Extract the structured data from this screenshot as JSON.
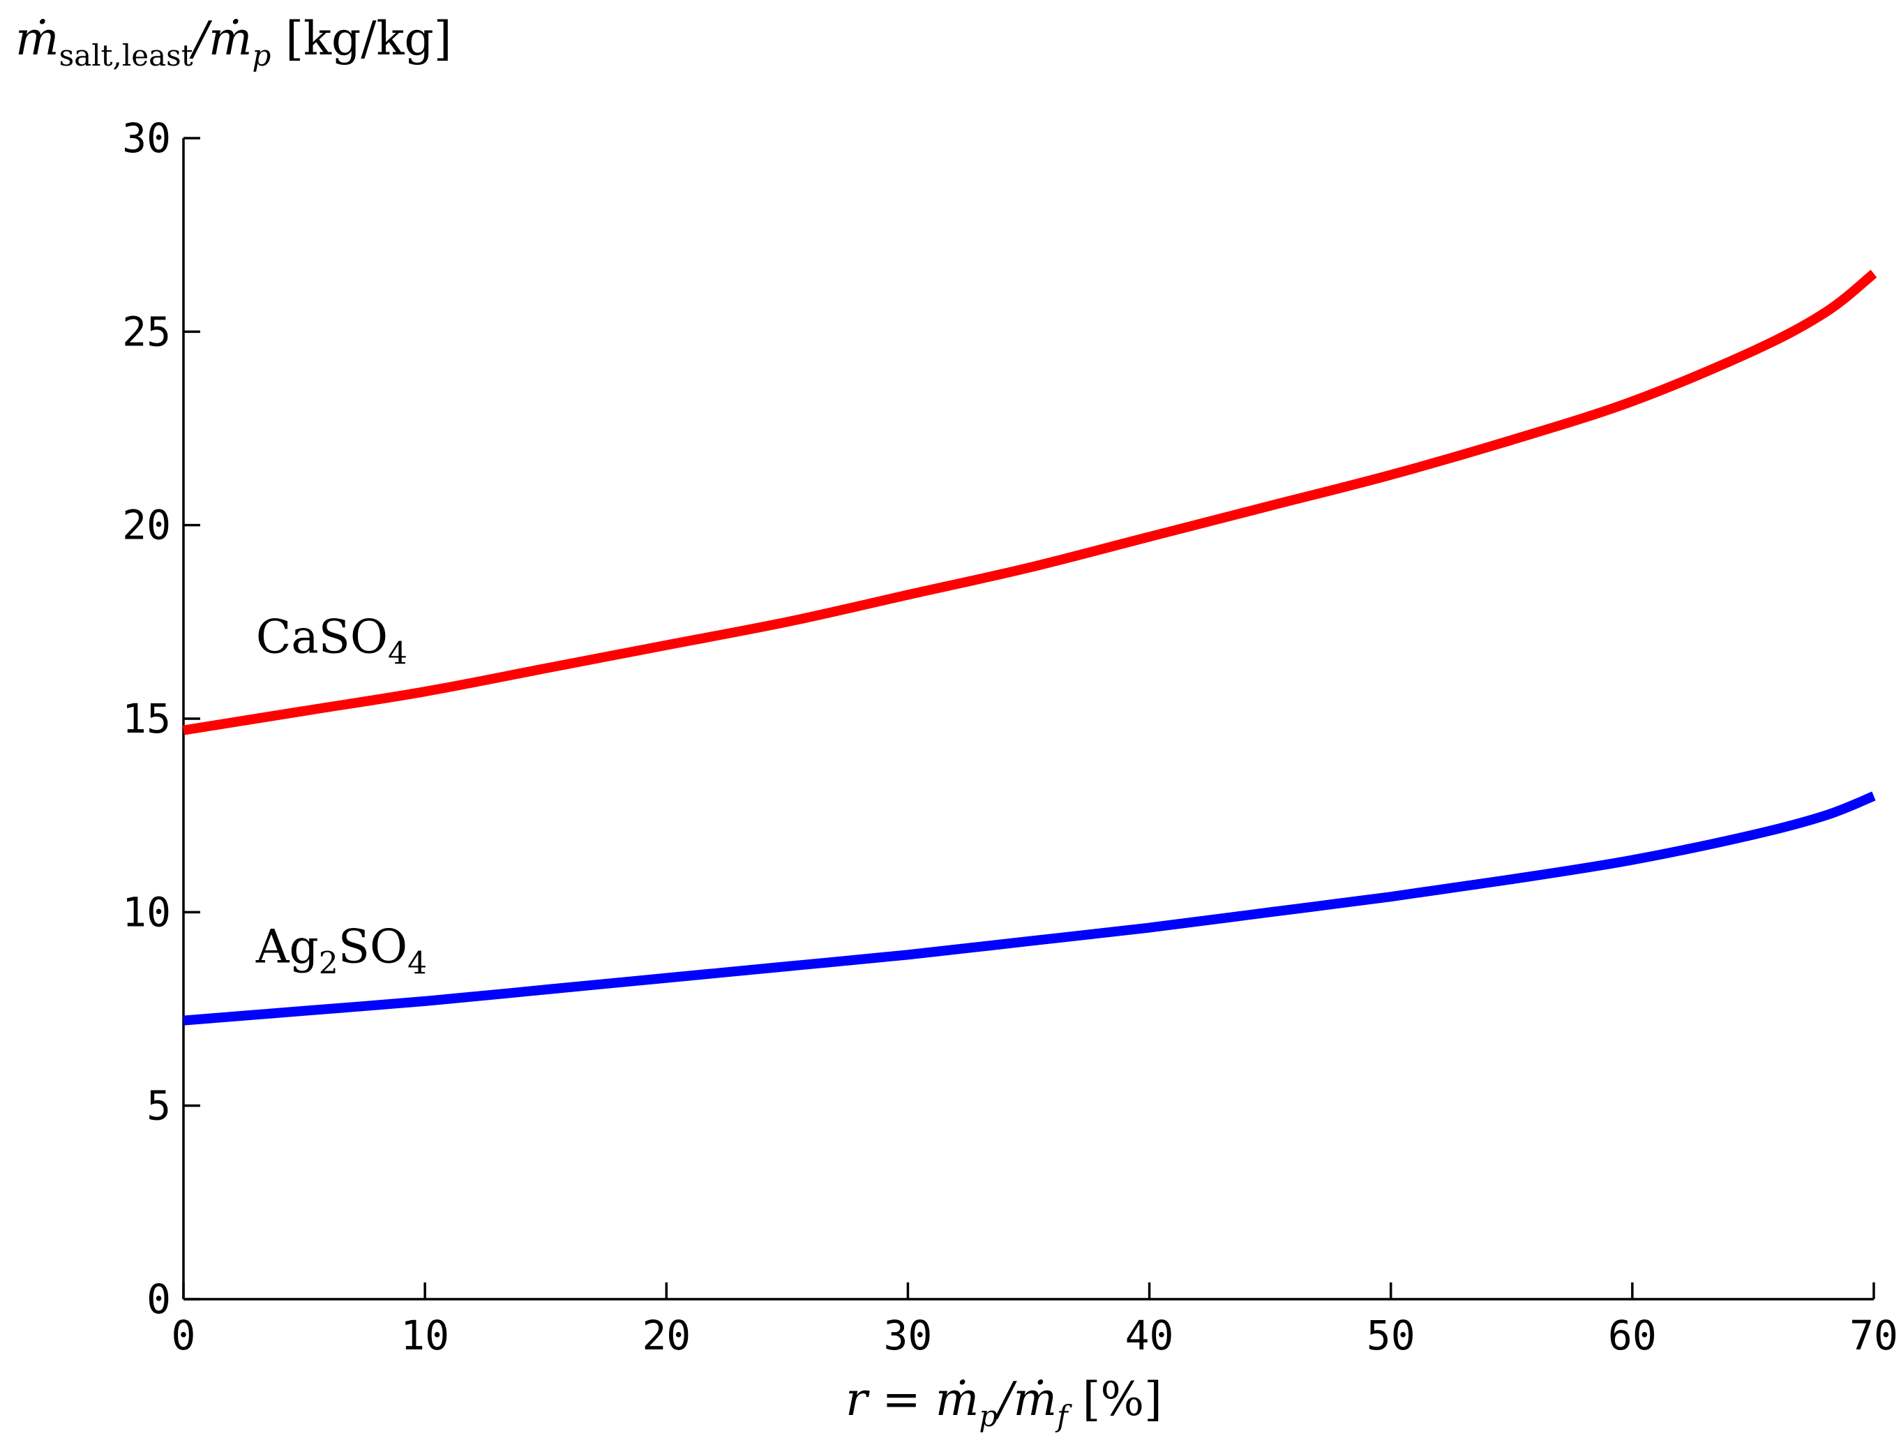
{
  "chart_data": {
    "type": "line",
    "title": "",
    "ylabel": {
      "prefix": "ṁ",
      "subscript": "salt,least",
      "mid": "/ṁ",
      "subscript2": "p",
      "unit": " [kg/kg]"
    },
    "xlabel": {
      "prefix": "r = ṁ",
      "subscript": "p",
      "mid": "/ṁ",
      "subscript2": "f",
      "unit": " [%]"
    },
    "xlim": [
      0,
      70
    ],
    "ylim": [
      0,
      30
    ],
    "x_ticks": [
      0,
      10,
      20,
      30,
      40,
      50,
      60,
      70
    ],
    "y_ticks": [
      0,
      5,
      10,
      15,
      20,
      25,
      30
    ],
    "x_tick_labels": [
      "0",
      "10",
      "20",
      "30",
      "40",
      "50",
      "60",
      "70"
    ],
    "y_tick_labels": [
      "0",
      "5",
      "10",
      "15",
      "20",
      "25",
      "30"
    ],
    "grid": false,
    "legend": "none",
    "series": [
      {
        "label": {
          "main": "CaSO",
          "subscript": "4",
          "rest": ""
        },
        "label_x": 3,
        "label_y": 16.7,
        "color": "#ff0000",
        "x": [
          0,
          5,
          10,
          15,
          20,
          25,
          30,
          35,
          40,
          45,
          50,
          55,
          60,
          65,
          68,
          70
        ],
        "y": [
          14.7,
          15.2,
          15.7,
          16.3,
          16.9,
          17.5,
          18.2,
          18.9,
          19.7,
          20.5,
          21.3,
          22.2,
          23.2,
          24.5,
          25.5,
          26.5
        ]
      },
      {
        "label": {
          "main": "Ag",
          "subscript": "2",
          "rest": "SO",
          "subscript2": "4"
        },
        "label_x": 3,
        "label_y": 8.7,
        "color": "#0000ff",
        "x": [
          0,
          5,
          10,
          15,
          20,
          25,
          30,
          35,
          40,
          45,
          50,
          55,
          60,
          65,
          68,
          70
        ],
        "y": [
          7.2,
          7.45,
          7.7,
          8.0,
          8.3,
          8.6,
          8.9,
          9.25,
          9.6,
          10.0,
          10.4,
          10.85,
          11.35,
          12.0,
          12.5,
          13.0
        ]
      }
    ]
  }
}
